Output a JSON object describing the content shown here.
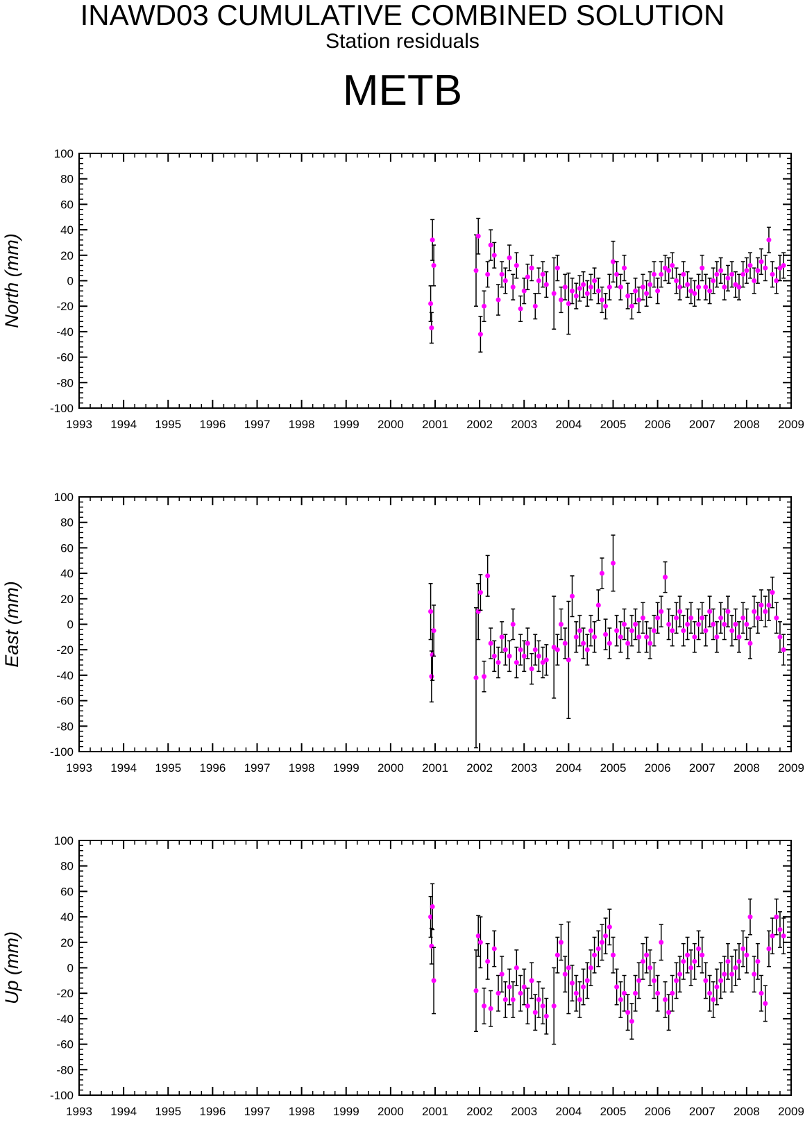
{
  "header": {
    "title": "INAWD03 CUMULATIVE COMBINED SOLUTION",
    "subtitle": "Station residuals",
    "station": "METB"
  },
  "colors": {
    "marker": "#ff00ff",
    "errorbar": "#000000",
    "axis": "#000000",
    "background": "#ffffff"
  },
  "chart_data": [
    {
      "type": "scatter",
      "ylabel": "North (mm)",
      "xlim": [
        1993,
        2009
      ],
      "ylim": [
        -100,
        100
      ],
      "x_ticks": [
        "1993",
        "1994",
        "1995",
        "1996",
        "1997",
        "1998",
        "1999",
        "2000",
        "2001",
        "2002",
        "2003",
        "2004",
        "2005",
        "2006",
        "2007",
        "2008",
        "2009"
      ],
      "y_ticks": [
        "100",
        "80",
        "60",
        "40",
        "20",
        "0",
        "-20",
        "-40",
        "-60",
        "-80",
        "-100"
      ],
      "grid": false,
      "series": [
        {
          "x": [
            2000.9,
            2000.92,
            2000.94,
            2000.97,
            2001.92,
            2001.97,
            2002.02,
            2002.1,
            2002.18,
            2002.25,
            2002.33,
            2002.42,
            2002.5,
            2002.58,
            2002.67,
            2002.75,
            2002.83,
            2002.92,
            2003.0,
            2003.08,
            2003.17,
            2003.25,
            2003.33,
            2003.42,
            2003.5,
            2003.67,
            2003.75,
            2003.83,
            2003.92,
            2004.0,
            2004.08,
            2004.17,
            2004.25,
            2004.33,
            2004.42,
            2004.5,
            2004.58,
            2004.67,
            2004.75,
            2004.83,
            2004.92,
            2005.0,
            2005.08,
            2005.17,
            2005.25,
            2005.33,
            2005.42,
            2005.5,
            2005.58,
            2005.67,
            2005.75,
            2005.83,
            2005.92,
            2006.0,
            2006.08,
            2006.17,
            2006.25,
            2006.33,
            2006.42,
            2006.5,
            2006.58,
            2006.67,
            2006.75,
            2006.83,
            2006.92,
            2007.0,
            2007.08,
            2007.17,
            2007.25,
            2007.33,
            2007.42,
            2007.5,
            2007.58,
            2007.67,
            2007.75,
            2007.83,
            2007.92,
            2008.0,
            2008.08,
            2008.17,
            2008.25,
            2008.33,
            2008.42,
            2008.5,
            2008.58,
            2008.67,
            2008.75,
            2008.83
          ],
          "y": [
            -18,
            -37,
            32,
            12,
            8,
            35,
            -42,
            -20,
            5,
            28,
            20,
            -15,
            5,
            0,
            18,
            -5,
            12,
            -22,
            -8,
            3,
            10,
            -20,
            0,
            5,
            -3,
            -10,
            10,
            -15,
            -5,
            -18,
            -8,
            -12,
            -6,
            -3,
            -10,
            -5,
            0,
            -8,
            -15,
            -20,
            -5,
            15,
            5,
            -5,
            10,
            -12,
            -20,
            -8,
            -15,
            -5,
            -10,
            -3,
            5,
            -8,
            5,
            10,
            8,
            12,
            0,
            -5,
            5,
            -3,
            -8,
            -10,
            -5,
            10,
            -5,
            -8,
            0,
            5,
            8,
            -5,
            2,
            5,
            -3,
            -5,
            5,
            8,
            12,
            0,
            8,
            15,
            10,
            32,
            5,
            0,
            10,
            12
          ],
          "err": [
            14,
            12,
            16,
            16,
            28,
            14,
            14,
            12,
            10,
            12,
            10,
            12,
            10,
            10,
            10,
            10,
            10,
            10,
            10,
            10,
            10,
            10,
            10,
            10,
            10,
            28,
            10,
            10,
            10,
            24,
            10,
            10,
            10,
            10,
            10,
            10,
            10,
            10,
            10,
            10,
            10,
            16,
            10,
            10,
            10,
            10,
            10,
            10,
            10,
            10,
            10,
            10,
            10,
            10,
            10,
            10,
            10,
            10,
            10,
            10,
            10,
            10,
            10,
            10,
            10,
            10,
            10,
            10,
            10,
            10,
            10,
            10,
            10,
            10,
            10,
            10,
            10,
            10,
            10,
            10,
            10,
            10,
            10,
            10,
            10,
            10,
            10,
            10
          ]
        }
      ]
    },
    {
      "type": "scatter",
      "ylabel": "East (mm)",
      "xlim": [
        1993,
        2009
      ],
      "ylim": [
        -100,
        100
      ],
      "x_ticks": [
        "1993",
        "1994",
        "1995",
        "1996",
        "1997",
        "1998",
        "1999",
        "2000",
        "2001",
        "2002",
        "2003",
        "2004",
        "2005",
        "2006",
        "2007",
        "2008",
        "2009"
      ],
      "y_ticks": [
        "100",
        "80",
        "60",
        "40",
        "20",
        "0",
        "-20",
        "-40",
        "-60",
        "-80",
        "-100"
      ],
      "grid": false,
      "series": [
        {
          "x": [
            2000.9,
            2000.92,
            2000.94,
            2000.97,
            2001.92,
            2001.97,
            2002.02,
            2002.1,
            2002.18,
            2002.25,
            2002.33,
            2002.42,
            2002.5,
            2002.58,
            2002.67,
            2002.75,
            2002.83,
            2002.92,
            2003.0,
            2003.08,
            2003.17,
            2003.25,
            2003.33,
            2003.42,
            2003.5,
            2003.67,
            2003.75,
            2003.83,
            2003.92,
            2004.0,
            2004.08,
            2004.17,
            2004.25,
            2004.33,
            2004.42,
            2004.5,
            2004.58,
            2004.67,
            2004.75,
            2004.83,
            2004.92,
            2005.0,
            2005.08,
            2005.17,
            2005.25,
            2005.33,
            2005.42,
            2005.5,
            2005.58,
            2005.67,
            2005.75,
            2005.83,
            2005.92,
            2006.0,
            2006.08,
            2006.17,
            2006.25,
            2006.33,
            2006.42,
            2006.5,
            2006.58,
            2006.67,
            2006.75,
            2006.83,
            2006.92,
            2007.0,
            2007.08,
            2007.17,
            2007.25,
            2007.33,
            2007.42,
            2007.5,
            2007.58,
            2007.67,
            2007.75,
            2007.83,
            2007.92,
            2008.0,
            2008.08,
            2008.17,
            2008.25,
            2008.33,
            2008.42,
            2008.5,
            2008.58,
            2008.67,
            2008.75,
            2008.83
          ],
          "y": [
            10,
            -41,
            -24,
            -5,
            -42,
            10,
            25,
            -41,
            38,
            -15,
            -25,
            -30,
            -10,
            -20,
            -25,
            0,
            -30,
            -20,
            -25,
            -15,
            -35,
            -20,
            -25,
            -30,
            -28,
            -18,
            -20,
            0,
            -15,
            -28,
            22,
            -10,
            -5,
            -15,
            -20,
            -5,
            -10,
            15,
            40,
            -8,
            -15,
            48,
            -5,
            -10,
            0,
            -15,
            -5,
            0,
            -10,
            5,
            -10,
            -15,
            -5,
            5,
            10,
            37,
            0,
            -5,
            5,
            10,
            -5,
            0,
            5,
            -10,
            0,
            5,
            -5,
            10,
            0,
            -10,
            5,
            0,
            10,
            -5,
            0,
            -10,
            5,
            0,
            -15,
            10,
            5,
            15,
            10,
            15,
            25,
            5,
            -10,
            -20
          ],
          "err": [
            22,
            20,
            20,
            20,
            55,
            22,
            14,
            12,
            16,
            12,
            12,
            12,
            12,
            12,
            12,
            12,
            12,
            12,
            12,
            12,
            12,
            12,
            12,
            12,
            12,
            40,
            12,
            12,
            12,
            46,
            16,
            12,
            12,
            12,
            12,
            12,
            12,
            12,
            12,
            12,
            12,
            22,
            12,
            12,
            12,
            12,
            12,
            12,
            12,
            12,
            12,
            12,
            12,
            12,
            12,
            12,
            12,
            12,
            12,
            12,
            12,
            12,
            12,
            12,
            12,
            12,
            12,
            12,
            12,
            12,
            12,
            12,
            12,
            12,
            12,
            12,
            12,
            12,
            12,
            12,
            12,
            12,
            12,
            12,
            12,
            12,
            12,
            12
          ]
        }
      ]
    },
    {
      "type": "scatter",
      "ylabel": "Up (mm)",
      "xlim": [
        1993,
        2009
      ],
      "ylim": [
        -100,
        100
      ],
      "x_ticks": [
        "1993",
        "1994",
        "1995",
        "1996",
        "1997",
        "1998",
        "1999",
        "2000",
        "2001",
        "2002",
        "2003",
        "2004",
        "2005",
        "2006",
        "2007",
        "2008",
        "2009"
      ],
      "y_ticks": [
        "100",
        "80",
        "60",
        "40",
        "20",
        "0",
        "-20",
        "-40",
        "-60",
        "-80",
        "-100"
      ],
      "grid": false,
      "series": [
        {
          "x": [
            2000.9,
            2000.92,
            2000.94,
            2000.97,
            2001.92,
            2001.97,
            2002.02,
            2002.1,
            2002.18,
            2002.25,
            2002.33,
            2002.42,
            2002.5,
            2002.58,
            2002.67,
            2002.75,
            2002.83,
            2002.92,
            2003.0,
            2003.08,
            2003.17,
            2003.25,
            2003.33,
            2003.42,
            2003.5,
            2003.67,
            2003.75,
            2003.83,
            2003.92,
            2004.0,
            2004.08,
            2004.17,
            2004.25,
            2004.33,
            2004.42,
            2004.5,
            2004.58,
            2004.67,
            2004.75,
            2004.83,
            2004.92,
            2005.0,
            2005.08,
            2005.17,
            2005.25,
            2005.33,
            2005.42,
            2005.5,
            2005.58,
            2005.67,
            2005.75,
            2005.83,
            2005.92,
            2006.0,
            2006.08,
            2006.17,
            2006.25,
            2006.33,
            2006.42,
            2006.5,
            2006.58,
            2006.67,
            2006.75,
            2006.83,
            2006.92,
            2007.0,
            2007.08,
            2007.17,
            2007.25,
            2007.33,
            2007.42,
            2007.5,
            2007.58,
            2007.67,
            2007.75,
            2007.83,
            2007.92,
            2008.0,
            2008.08,
            2008.17,
            2008.25,
            2008.33,
            2008.42,
            2008.5,
            2008.58,
            2008.67,
            2008.75,
            2008.83
          ],
          "y": [
            40,
            17,
            48,
            -10,
            -18,
            25,
            20,
            -30,
            5,
            -32,
            15,
            -20,
            -5,
            -25,
            -15,
            -25,
            0,
            -20,
            -15,
            -30,
            -10,
            -35,
            -25,
            -30,
            -38,
            -30,
            10,
            20,
            -5,
            0,
            -12,
            -20,
            -25,
            -15,
            -10,
            0,
            10,
            15,
            20,
            25,
            32,
            10,
            -15,
            -25,
            -20,
            -35,
            -42,
            -20,
            -10,
            5,
            10,
            0,
            -10,
            -20,
            20,
            -25,
            -35,
            -20,
            -10,
            -5,
            5,
            10,
            0,
            5,
            15,
            10,
            -10,
            -20,
            -25,
            -15,
            -10,
            -5,
            5,
            -5,
            0,
            5,
            15,
            10,
            40,
            -5,
            5,
            -20,
            -28,
            15,
            25,
            40,
            30,
            25
          ],
          "err": [
            16,
            14,
            18,
            26,
            32,
            16,
            20,
            14,
            14,
            14,
            14,
            14,
            14,
            14,
            14,
            14,
            14,
            14,
            14,
            14,
            14,
            14,
            14,
            14,
            14,
            30,
            14,
            14,
            14,
            36,
            14,
            14,
            14,
            14,
            14,
            14,
            14,
            14,
            14,
            14,
            14,
            14,
            14,
            14,
            14,
            14,
            14,
            14,
            14,
            14,
            14,
            14,
            14,
            14,
            14,
            14,
            14,
            14,
            14,
            14,
            14,
            14,
            14,
            14,
            14,
            14,
            14,
            14,
            14,
            14,
            14,
            14,
            14,
            14,
            14,
            14,
            14,
            14,
            14,
            14,
            14,
            14,
            14,
            14,
            14,
            14,
            14,
            14
          ]
        }
      ]
    }
  ]
}
